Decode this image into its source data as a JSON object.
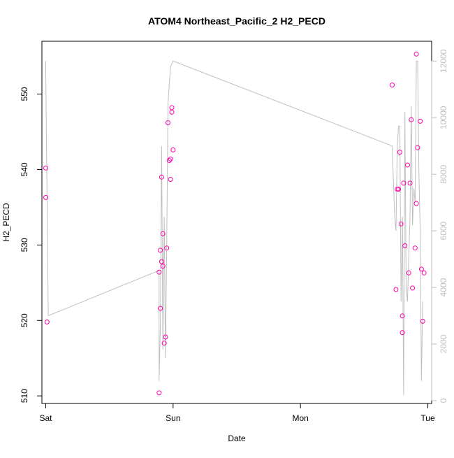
{
  "chart_data": {
    "type": "scatter",
    "title": "ATOM4 Northeast_Pacific_2 H2_PECD",
    "xlabel": "Date",
    "ylabel": "H2_PECD",
    "x_tick_labels": [
      "Sat",
      "Sun",
      "Mon",
      "Tue"
    ],
    "x_ticks_days": [
      0,
      1,
      2,
      3
    ],
    "xlim_days": [
      -0.03,
      3.03
    ],
    "y_ticks": [
      510,
      520,
      530,
      540,
      550
    ],
    "ylim": [
      509,
      557
    ],
    "y2_ticks": [
      0,
      2000,
      4000,
      6000,
      8000,
      10000,
      12000
    ],
    "y2lim": [
      -100,
      12700
    ],
    "grid": false,
    "legend": "none",
    "colors": {
      "points": "#ff00aa",
      "line": "#bfbfbf",
      "axis": "#000000",
      "right_axis": "#bfbfbf"
    },
    "series": [
      {
        "axis": "left",
        "style": "points",
        "points": [
          [
            0.0,
            540.2
          ],
          [
            0.0,
            536.3
          ],
          [
            0.01,
            519.8
          ],
          [
            0.89,
            510.4
          ],
          [
            0.89,
            526.4
          ],
          [
            0.9,
            529.3
          ],
          [
            0.9,
            521.6
          ],
          [
            0.91,
            527.8
          ],
          [
            0.91,
            539.0
          ],
          [
            0.92,
            531.5
          ],
          [
            0.92,
            527.2
          ],
          [
            0.93,
            517.0
          ],
          [
            0.94,
            517.8
          ],
          [
            0.95,
            529.6
          ],
          [
            0.96,
            546.2
          ],
          [
            0.97,
            541.2
          ],
          [
            0.98,
            541.4
          ],
          [
            0.98,
            538.7
          ],
          [
            0.99,
            547.6
          ],
          [
            0.99,
            548.2
          ],
          [
            1.0,
            542.6
          ],
          [
            2.72,
            551.2
          ],
          [
            2.75,
            524.1
          ],
          [
            2.76,
            537.4
          ],
          [
            2.77,
            537.4
          ],
          [
            2.78,
            542.3
          ],
          [
            2.79,
            532.8
          ],
          [
            2.8,
            520.6
          ],
          [
            2.8,
            518.4
          ],
          [
            2.81,
            538.2
          ],
          [
            2.82,
            529.9
          ],
          [
            2.84,
            540.6
          ],
          [
            2.85,
            526.3
          ],
          [
            2.86,
            538.2
          ],
          [
            2.87,
            546.6
          ],
          [
            2.88,
            524.3
          ],
          [
            2.9,
            529.6
          ],
          [
            2.91,
            555.3
          ],
          [
            2.91,
            535.5
          ],
          [
            2.92,
            542.9
          ],
          [
            2.94,
            546.4
          ],
          [
            2.95,
            526.8
          ],
          [
            2.96,
            519.9
          ],
          [
            2.97,
            526.3
          ]
        ]
      },
      {
        "axis": "right",
        "style": "line",
        "points": [
          [
            0.0,
            12000
          ],
          [
            0.0,
            11600
          ],
          [
            0.02,
            3000
          ],
          [
            0.89,
            4600
          ],
          [
            0.89,
            700
          ],
          [
            0.9,
            2600
          ],
          [
            0.91,
            9000
          ],
          [
            0.92,
            1800
          ],
          [
            0.93,
            6500
          ],
          [
            0.94,
            1500
          ],
          [
            0.95,
            5500
          ],
          [
            0.96,
            10500
          ],
          [
            0.97,
            11200
          ],
          [
            0.98,
            11800
          ],
          [
            1.0,
            12000
          ],
          [
            2.72,
            9000
          ],
          [
            2.74,
            6500
          ],
          [
            2.75,
            6000
          ],
          [
            2.76,
            9000
          ],
          [
            2.77,
            9700
          ],
          [
            2.78,
            9700
          ],
          [
            2.79,
            3500
          ],
          [
            2.8,
            6500
          ],
          [
            2.81,
            200
          ],
          [
            2.82,
            10200
          ],
          [
            2.83,
            4000
          ],
          [
            2.84,
            3500
          ],
          [
            2.85,
            5000
          ],
          [
            2.86,
            6500
          ],
          [
            2.87,
            10400
          ],
          [
            2.88,
            6200
          ],
          [
            2.89,
            7500
          ],
          [
            2.9,
            7000
          ],
          [
            2.91,
            12000
          ],
          [
            2.92,
            12000
          ],
          [
            2.93,
            8000
          ],
          [
            2.94,
            6000
          ],
          [
            2.95,
            700
          ],
          [
            2.96,
            3500
          ]
        ]
      }
    ]
  }
}
